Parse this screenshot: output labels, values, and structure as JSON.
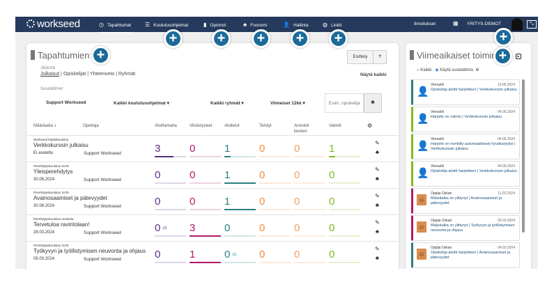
{
  "nav": {
    "logo": "workseed",
    "items": [
      {
        "label": "Tapahtumat",
        "icon": "clock-icon"
      },
      {
        "label": "Koulutusohjelmat",
        "icon": "list-icon"
      },
      {
        "label": "Opinnot",
        "icon": "bar-chart-icon"
      },
      {
        "label": "Foorumi",
        "icon": "sitemap-icon"
      },
      {
        "label": "Hallinta",
        "icon": "user-plus-icon"
      },
      {
        "label": "Linkit",
        "icon": "globe-icon"
      }
    ],
    "notifications": "Ilmoitukset",
    "company": "YRITYS-DEMOT"
  },
  "events": {
    "title": "Tapahtumien t",
    "intro_button": "Esittely",
    "sort_label": "Järjestä",
    "sort_options": [
      "Julkaisut",
      "Opiskelijat",
      "Yhteenveto",
      "Ryhmät"
    ],
    "show_all": "Näytä kaikki",
    "filters_label": "Suodattimet",
    "filters": {
      "teacher": "Support Workseed",
      "programs": "Kaikki koulutusohjelmat ▾",
      "groups": "Kaikki ryhmät ▾",
      "period": "Viimeiset 12kk ▾",
      "search_placeholder": "Esim. opiskelija"
    },
    "columns": [
      "Määräaika 🡓",
      "Opettaja",
      "Aloittamatta",
      "Viivästyneet",
      "Aloitetut",
      "Tehdyt",
      "Arviointi kesken",
      "Valmiit"
    ],
    "stat_colors": [
      "#5b2c83",
      "#b0186b",
      "#2e7c80",
      "#f08a3c",
      "#f4a060",
      "#7cbb1e"
    ],
    "rows": [
      {
        "category": "Workseed käyttökoulutus",
        "name": "Verkkokurssin julkaisu",
        "date": "Ei asetettu",
        "teacher": "Support Workseed",
        "stats": [
          {
            "v": "3",
            "x": "",
            "f": 0.6
          },
          {
            "v": "0",
            "x": "",
            "f": 0
          },
          {
            "v": "1",
            "x": "",
            "f": 0.2
          },
          {
            "v": "0",
            "x": "",
            "f": 0
          },
          {
            "v": "0",
            "x": "",
            "f": 0
          },
          {
            "v": "1",
            "x": "",
            "f": 0.2
          }
        ]
      },
      {
        "category": "Perehdytyskoulutus SoTe",
        "name": "Yleisperehdytys",
        "date": "30.06.2024",
        "teacher": "Support Workseed",
        "stats": [
          {
            "v": "0",
            "x": "",
            "f": 0
          },
          {
            "v": "0",
            "x": "",
            "f": 0
          },
          {
            "v": "1",
            "x": "",
            "f": 1
          },
          {
            "v": "0",
            "x": "",
            "f": 0
          },
          {
            "v": "0",
            "x": "",
            "f": 0
          },
          {
            "v": "0",
            "x": "",
            "f": 0
          }
        ]
      },
      {
        "category": "Perehdytyskoulutus SoTe",
        "name": "Avainosaamiset ja pätevyydet",
        "date": "30.08.2024",
        "teacher": "Support Workseed",
        "stats": [
          {
            "v": "0",
            "x": "",
            "f": 0
          },
          {
            "v": "0",
            "x": "",
            "f": 0
          },
          {
            "v": "1",
            "x": "",
            "f": 1
          },
          {
            "v": "0",
            "x": "",
            "f": 0
          },
          {
            "v": "0",
            "x": "",
            "f": 0
          },
          {
            "v": "0",
            "x": "",
            "f": 0
          }
        ]
      },
      {
        "category": "Perehdytyskoulutus ravintola",
        "name": "Tervetuloa ravintolaan!",
        "date": "28.03.2024",
        "teacher": "Support Workseed",
        "stats": [
          {
            "v": "0",
            "x": "(3)",
            "f": 0
          },
          {
            "v": "3",
            "x": "",
            "f": 1
          },
          {
            "v": "0",
            "x": "",
            "f": 0
          },
          {
            "v": "0",
            "x": "",
            "f": 0
          },
          {
            "v": "0",
            "x": "",
            "f": 0
          },
          {
            "v": "0",
            "x": "",
            "f": 0
          }
        ]
      },
      {
        "category": "Perehdytyskoulutus SoTe",
        "name": "Työkyvyn ja työllistymisen neuvonta ja ohjaus",
        "date": "05.03.2024",
        "teacher": "Support Workseed",
        "stats": [
          {
            "v": "0",
            "x": "",
            "f": 0
          },
          {
            "v": "1",
            "x": "",
            "f": 1
          },
          {
            "v": "0",
            "x": "(1)",
            "f": 0
          },
          {
            "v": "0",
            "x": "",
            "f": 0
          },
          {
            "v": "0",
            "x": "",
            "f": 0
          },
          {
            "v": "0",
            "x": "",
            "f": 0
          }
        ]
      }
    ]
  },
  "recent": {
    "title": "Viimeaikaiset toiminn",
    "radio_all": "Kaikki",
    "radio_filters": "Käytä suodattimia",
    "items": [
      {
        "who": "Vierastili",
        "date": "10.06.2024",
        "msg": "Opiskelija aloitti harjoitteen | Verkkokurssin julkaisu",
        "color": "#2e7c80",
        "avatar": "silhouette"
      },
      {
        "who": "Vierastili",
        "date": "04.06.2024",
        "msg": "Harjoite on valmis | Verkkokurssin julkaisu",
        "color": "#7cbb1e",
        "avatar": "silhouette"
      },
      {
        "who": "Vierastili",
        "date": "04.06.2024",
        "msg": "Harjoite on merkitty automaattisesti hyväksytyksi | Verkkokurssin julkaisu",
        "color": "#7cbb1e",
        "avatar": "silhouette"
      },
      {
        "who": "Vierastili",
        "date": "04.06.2024",
        "msg": "Opiskelija aloitti harjoitteen | Verkkokurssin julkaisu",
        "color": "#7cbb1e",
        "avatar": "silhouette"
      },
      {
        "who": "Oppija Oskari",
        "date": "11.03.2024",
        "msg": "Määräaika on ylittynyt | Avainosaamiset ja pätevyydet",
        "color": "#b0186b",
        "avatar": "photo"
      },
      {
        "who": "Oppija Oskari",
        "date": "05.03.2024",
        "msg": "Määräaika on ylittynyt | Työkyvyn ja työllistymisen neuvonta ja ohjaus",
        "color": "#b0186b",
        "avatar": "photo"
      },
      {
        "who": "Oppija Oskari",
        "date": "04.03.2024",
        "msg": "Opiskelija aloitti harjoitteen | Avainosaamiset ja pätevyydet",
        "color": "#2e7c80",
        "avatar": "photo"
      },
      {
        "who": "",
        "date": "",
        "msg": "",
        "color": "#2e7c80",
        "avatar": ""
      }
    ]
  }
}
